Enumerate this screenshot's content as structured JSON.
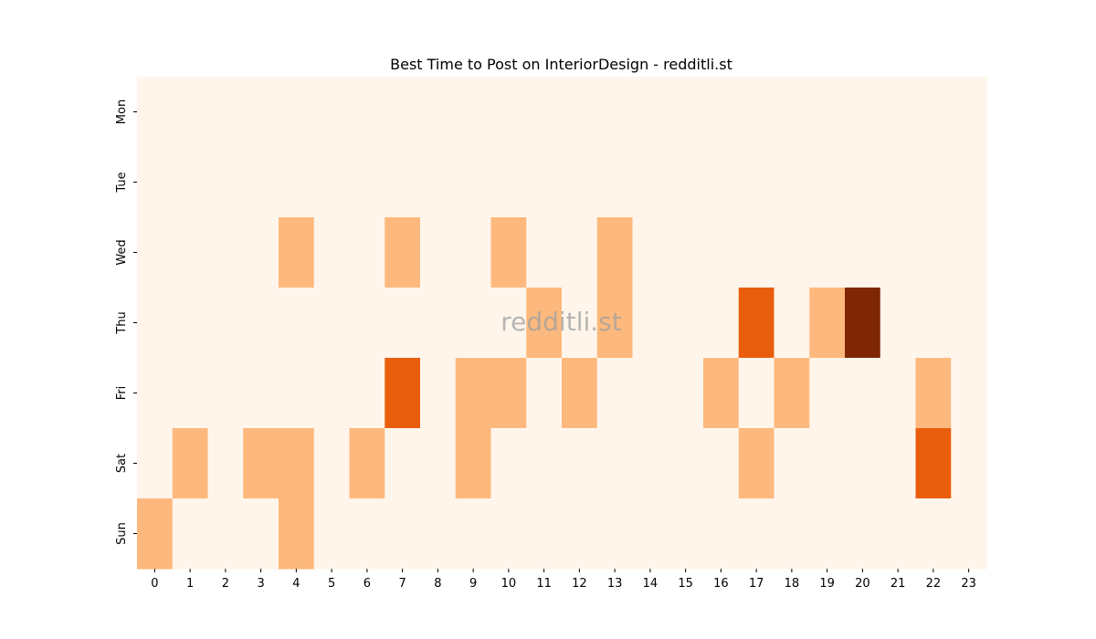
{
  "chart_data": {
    "type": "heatmap",
    "title": "Best Time to Post on InteriorDesign - redditli.st",
    "watermark": "redditli.st",
    "xlabel": "",
    "ylabel": "",
    "x": [
      "0",
      "1",
      "2",
      "3",
      "4",
      "5",
      "6",
      "7",
      "8",
      "9",
      "10",
      "11",
      "12",
      "13",
      "14",
      "15",
      "16",
      "17",
      "18",
      "19",
      "20",
      "21",
      "22",
      "23"
    ],
    "y": [
      "Mon",
      "Tue",
      "Wed",
      "Thu",
      "Fri",
      "Sat",
      "Sun"
    ],
    "values": [
      [
        0,
        0,
        0,
        0,
        0,
        0,
        0,
        0,
        0,
        0,
        0,
        0,
        0,
        0,
        0,
        0,
        0,
        0,
        0,
        0,
        0,
        0,
        0,
        0
      ],
      [
        0,
        0,
        0,
        0,
        0,
        0,
        0,
        0,
        0,
        0,
        0,
        0,
        0,
        0,
        0,
        0,
        0,
        0,
        0,
        0,
        0,
        0,
        0,
        0
      ],
      [
        0,
        0,
        0,
        0,
        1,
        0,
        0,
        1,
        0,
        0,
        1,
        0,
        0,
        1,
        0,
        0,
        0,
        0,
        0,
        0,
        0,
        0,
        0,
        0
      ],
      [
        0,
        0,
        0,
        0,
        0,
        0,
        0,
        0,
        0,
        0,
        0,
        1,
        0,
        1,
        0,
        0,
        0,
        2,
        0,
        1,
        3,
        0,
        0,
        0
      ],
      [
        0,
        0,
        0,
        0,
        0,
        0,
        0,
        2,
        0,
        1,
        1,
        0,
        1,
        0,
        0,
        0,
        1,
        0,
        1,
        0,
        0,
        0,
        1,
        0
      ],
      [
        0,
        1,
        0,
        1,
        1,
        0,
        1,
        0,
        0,
        1,
        0,
        0,
        0,
        0,
        0,
        0,
        0,
        1,
        0,
        0,
        0,
        0,
        2,
        0
      ],
      [
        1,
        0,
        0,
        0,
        1,
        0,
        0,
        0,
        0,
        0,
        0,
        0,
        0,
        0,
        0,
        0,
        0,
        0,
        0,
        0,
        0,
        0,
        0,
        0
      ]
    ],
    "colorscale": {
      "0": "#fff5eb",
      "1": "#fdb97d",
      "2": "#e95e0d",
      "3": "#7f2704"
    },
    "grid": false,
    "legend": "none"
  }
}
